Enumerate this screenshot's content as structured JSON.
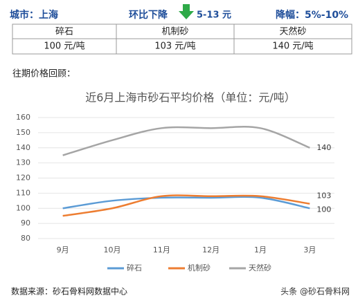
{
  "header": {
    "city": "城市：上海",
    "change": "环比下降",
    "change_range": "5-13 元",
    "decline": "降幅：5%-10%"
  },
  "table": {
    "headers": [
      "碎石",
      "机制砂",
      "天然砂"
    ],
    "rows": [
      [
        "100 元/吨",
        "103 元/吨",
        "140 元/吨"
      ]
    ]
  },
  "section_label": "往期价格回顾：",
  "chart_data": {
    "type": "line",
    "title": "近6月上海市砂石平均价格（单位：元/吨）",
    "categories": [
      "9月",
      "10月",
      "11月",
      "12月",
      "1月",
      "3月"
    ],
    "series": [
      {
        "name": "碎石",
        "color": "#5b9bd5",
        "values": [
          100,
          105,
          107,
          107,
          107,
          100
        ]
      },
      {
        "name": "机制砂",
        "color": "#ed7d31",
        "values": [
          95,
          100,
          108,
          108,
          108,
          103
        ]
      },
      {
        "name": "天然砂",
        "color": "#a5a5a5",
        "values": [
          135,
          145,
          153,
          153,
          153,
          140
        ]
      }
    ],
    "ylim": [
      80,
      160
    ],
    "yticks": [
      80,
      90,
      100,
      110,
      120,
      130,
      140,
      150,
      160
    ],
    "legend": "bottom"
  },
  "footer": {
    "source": "数据来源：砂石骨料网数据中心",
    "credit": "头条 @砂石骨料网"
  }
}
